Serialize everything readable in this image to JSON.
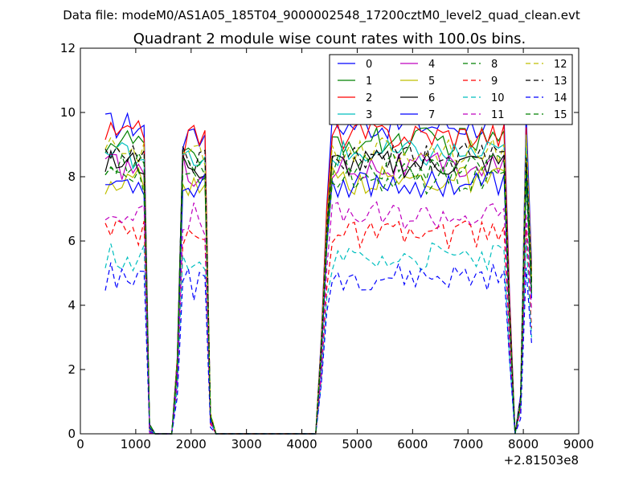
{
  "header": {
    "file_label": "Data file: modeM0/AS1A05_185T04_9000002548_17200cztM0_level2_quad_clean.evt"
  },
  "chart_data": {
    "type": "line",
    "title": "Quadrant 2 module wise count rates with 100.0s bins.",
    "xlabel": "",
    "ylabel": "",
    "x_offset_label": "+2.81503e8",
    "xlim": [
      0,
      9000
    ],
    "ylim": [
      0,
      12
    ],
    "xticks": [
      0,
      1000,
      2000,
      3000,
      4000,
      5000,
      6000,
      7000,
      8000,
      9000
    ],
    "xtick_labels": [
      "0",
      "1000",
      "2000",
      "3000",
      "4000",
      "5000",
      "6000",
      "7000",
      "8000",
      "9000"
    ],
    "yticks": [
      0,
      2,
      4,
      6,
      8,
      10,
      12
    ],
    "ytick_labels": [
      "0",
      "2",
      "4",
      "6",
      "8",
      "10",
      "12"
    ],
    "grid": false,
    "legend_position": "top-right",
    "legend_columns": 4,
    "x": [
      450,
      550,
      650,
      750,
      850,
      950,
      1050,
      1150,
      1250,
      1350,
      1450,
      1550,
      1650,
      1750,
      1850,
      1950,
      2050,
      2150,
      2250,
      2350,
      2450,
      2550,
      2650,
      2750,
      2850,
      2950,
      3050,
      3150,
      3250,
      3350,
      3450,
      3550,
      3650,
      3750,
      3850,
      3950,
      4050,
      4150,
      4250,
      4350,
      4450,
      4550,
      4650,
      4750,
      4850,
      4950,
      5050,
      5150,
      5250,
      5350,
      5450,
      5550,
      5650,
      5750,
      5850,
      5950,
      6050,
      6150,
      6250,
      6350,
      6450,
      6550,
      6650,
      6750,
      6850,
      6950,
      7050,
      7150,
      7250,
      7350,
      7450,
      7550,
      7650,
      7750,
      7850,
      7950,
      8050,
      8150
    ],
    "series": [
      {
        "name": "0",
        "color": "#0000ff",
        "dash": "solid",
        "level": 9.6
      },
      {
        "name": "1",
        "color": "#008000",
        "dash": "solid",
        "level": 9.1
      },
      {
        "name": "2",
        "color": "#ff0000",
        "dash": "solid",
        "level": 9.3
      },
      {
        "name": "3",
        "color": "#00bfbf",
        "dash": "solid",
        "level": 8.7
      },
      {
        "name": "4",
        "color": "#bf00bf",
        "dash": "solid",
        "level": 8.3
      },
      {
        "name": "5",
        "color": "#bfbf00",
        "dash": "solid",
        "level": 7.9
      },
      {
        "name": "6",
        "color": "#000000",
        "dash": "solid",
        "level": 8.4
      },
      {
        "name": "7",
        "color": "#0000ff",
        "dash": "solid",
        "level": 7.8
      },
      {
        "name": "8",
        "color": "#008000",
        "dash": "dashed",
        "level": 7.9
      },
      {
        "name": "9",
        "color": "#ff0000",
        "dash": "dashed",
        "level": 6.2
      },
      {
        "name": "10",
        "color": "#00bfbf",
        "dash": "dashed",
        "level": 5.5
      },
      {
        "name": "11",
        "color": "#bf00bf",
        "dash": "dashed",
        "level": 6.8
      },
      {
        "name": "12",
        "color": "#bfbf00",
        "dash": "dashed",
        "level": 8.8
      },
      {
        "name": "13",
        "color": "#000000",
        "dash": "dashed",
        "level": 8.6
      },
      {
        "name": "14",
        "color": "#0000ff",
        "dash": "dashed",
        "level": 4.9
      },
      {
        "name": "15",
        "color": "#008000",
        "dash": "dashed",
        "level": 8.3
      }
    ]
  }
}
